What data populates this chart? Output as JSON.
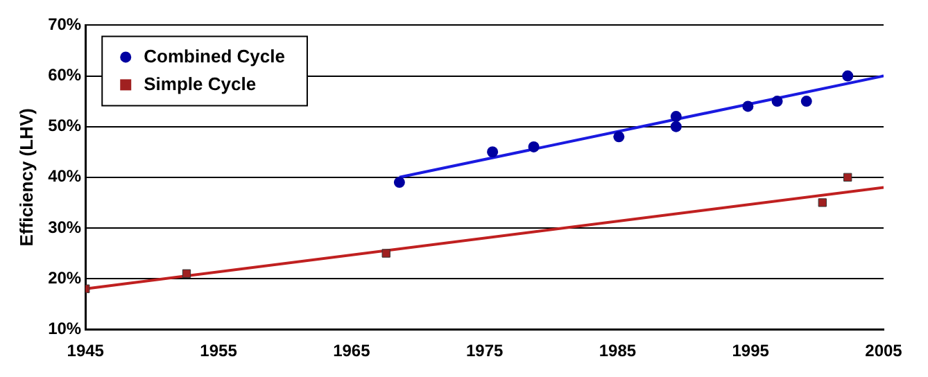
{
  "chart_data": {
    "type": "scatter",
    "ylabel": "Efficiency (LHV)",
    "xlim": [
      1945,
      2005
    ],
    "xticks": [
      1945,
      1955,
      1965,
      1975,
      1985,
      1995,
      2005
    ],
    "ylim": [
      10,
      70
    ],
    "yticks": [
      {
        "value": 10,
        "label": "10%"
      },
      {
        "value": 20,
        "label": "20%"
      },
      {
        "value": 30,
        "label": "30%"
      },
      {
        "value": 40,
        "label": "40%"
      },
      {
        "value": 50,
        "label": "50%"
      },
      {
        "value": 60,
        "label": "60%"
      },
      {
        "value": 70,
        "label": "70%"
      }
    ],
    "grid": "y",
    "legend": "top left",
    "series": [
      {
        "name": "Combined Cycle",
        "marker": "circle",
        "color": "#0000a0",
        "x": [
          1968.6,
          1975.6,
          1978.7,
          1985.1,
          1989.4,
          1989.4,
          1994.8,
          1997,
          1999.2,
          2002.3
        ],
        "values": [
          39,
          45,
          46,
          48,
          52,
          50,
          54,
          55,
          55,
          60
        ]
      },
      {
        "name": "Simple Cycle",
        "marker": "square",
        "color": "#a02020",
        "x": [
          1945,
          1952.6,
          1967.6,
          2000.4,
          2002.3
        ],
        "values": [
          18,
          21,
          25,
          35,
          40
        ]
      },
      {
        "type": "line",
        "marker": "none",
        "color": "#1a1ae0",
        "x": [
          1968.6,
          2005
        ],
        "values": [
          40,
          60
        ]
      },
      {
        "type": "line",
        "marker": "none",
        "color": "#c02020",
        "x": [
          1945,
          2005
        ],
        "values": [
          18,
          38
        ]
      }
    ]
  }
}
